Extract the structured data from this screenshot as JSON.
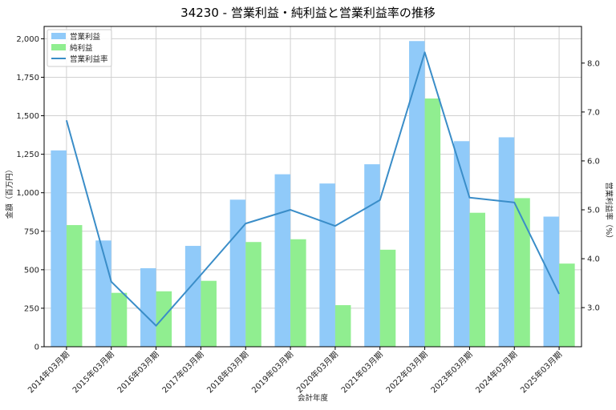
{
  "chart_data": {
    "type": "bar",
    "title": "34230 - 営業利益・純利益と営業利益率の推移",
    "xlabel": "会計年度",
    "ylabel_left": "金額（百万円）",
    "ylabel_right": "営業利益率（%）",
    "ylim_left": [
      0,
      2080
    ],
    "ylim_right": [
      2.2,
      8.75
    ],
    "yticks_left": [
      0,
      250,
      500,
      750,
      1000,
      1250,
      1500,
      1750,
      2000
    ],
    "yticks_left_labels": [
      "0",
      "250",
      "500",
      "750",
      "1,000",
      "1,250",
      "1,500",
      "1,750",
      "2,000"
    ],
    "yticks_right": [
      3.0,
      4.0,
      5.0,
      6.0,
      7.0,
      8.0
    ],
    "yticks_right_labels": [
      "3.0",
      "4.0",
      "5.0",
      "6.0",
      "7.0",
      "8.0"
    ],
    "grid": true,
    "legend_position": "top-left",
    "categories": [
      "2014年03月期",
      "2015年03月期",
      "2016年03月期",
      "2017年03月期",
      "2018年03月期",
      "2019年03月期",
      "2020年03月期",
      "2021年03月期",
      "2022年03月期",
      "2023年03月期",
      "2024年03月期",
      "2025年03月期"
    ],
    "series": [
      {
        "name": "営業利益",
        "kind": "bar",
        "axis": "left",
        "color": "#90CAF9",
        "values": [
          1275,
          690,
          510,
          655,
          955,
          1120,
          1060,
          1185,
          1985,
          1335,
          1360,
          845
        ]
      },
      {
        "name": "純利益",
        "kind": "bar",
        "axis": "left",
        "color": "#90EE90",
        "values": [
          790,
          350,
          360,
          428,
          680,
          698,
          270,
          630,
          1612,
          870,
          965,
          540
        ]
      },
      {
        "name": "営業利益率",
        "kind": "line",
        "axis": "right",
        "color": "#3A8DC8",
        "values": [
          6.83,
          3.53,
          2.63,
          3.67,
          4.72,
          5.0,
          4.67,
          5.2,
          8.22,
          5.25,
          5.15,
          3.28
        ]
      }
    ]
  }
}
